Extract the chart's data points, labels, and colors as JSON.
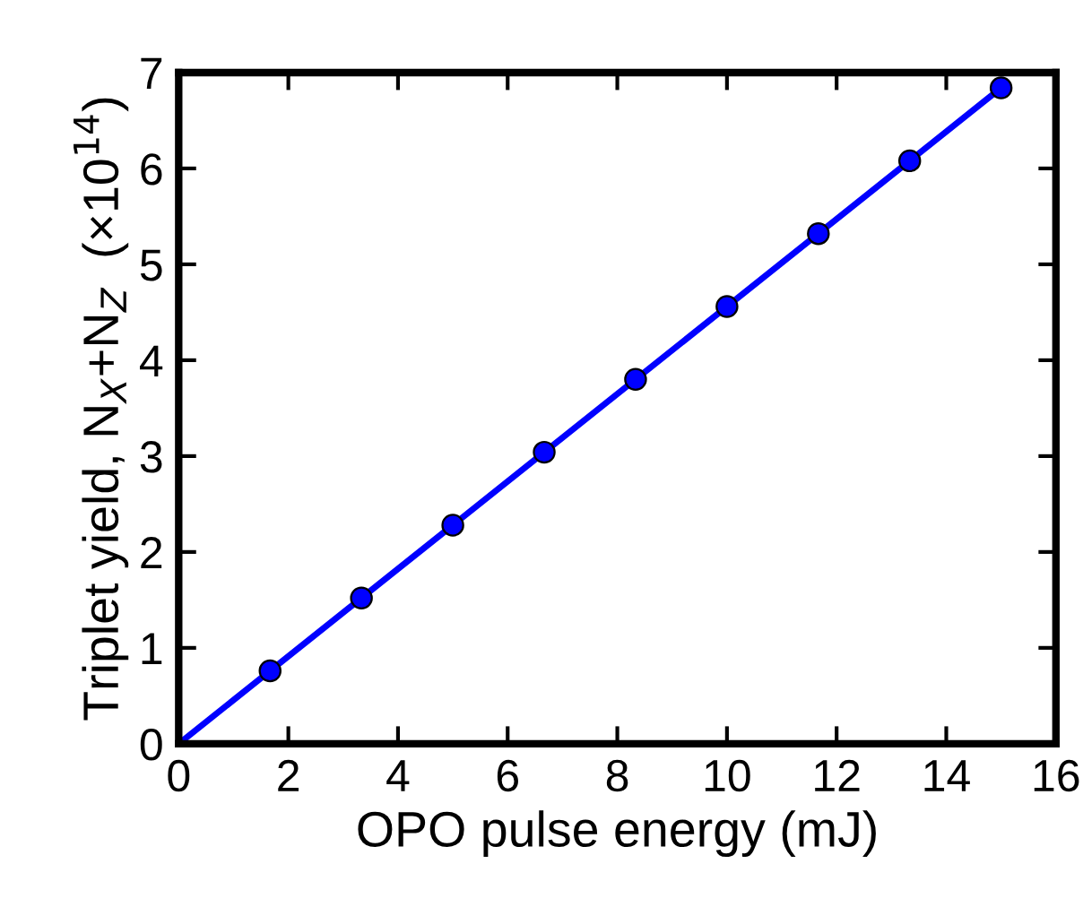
{
  "chart_data": {
    "type": "scatter",
    "xlabel": "OPO pulse energy (mJ)",
    "ylabel": "Triplet yield, N$_{X}$+N$_{Z}$  (×10$^{14}$)",
    "series": [
      {
        "type": "line",
        "color": "#0000ff",
        "x": [
          0,
          15
        ],
        "values": [
          0,
          6.84
        ],
        "marker": "none"
      },
      {
        "color": "#0000ff",
        "x": [
          1.667,
          3.333,
          5,
          6.667,
          8.333,
          10,
          11.667,
          13.333,
          15
        ],
        "values": [
          0.76,
          1.52,
          2.28,
          3.04,
          3.8,
          4.56,
          5.32,
          6.08,
          6.84
        ],
        "marker": "circle"
      }
    ],
    "xlim": [
      0,
      16
    ],
    "xticks": [
      0,
      2,
      4,
      6,
      8,
      10,
      12,
      14,
      16
    ],
    "ylim": [
      0,
      7
    ],
    "yticks": [
      0,
      1,
      2,
      3,
      4,
      5,
      6,
      7
    ],
    "grid": false,
    "legend": false
  }
}
